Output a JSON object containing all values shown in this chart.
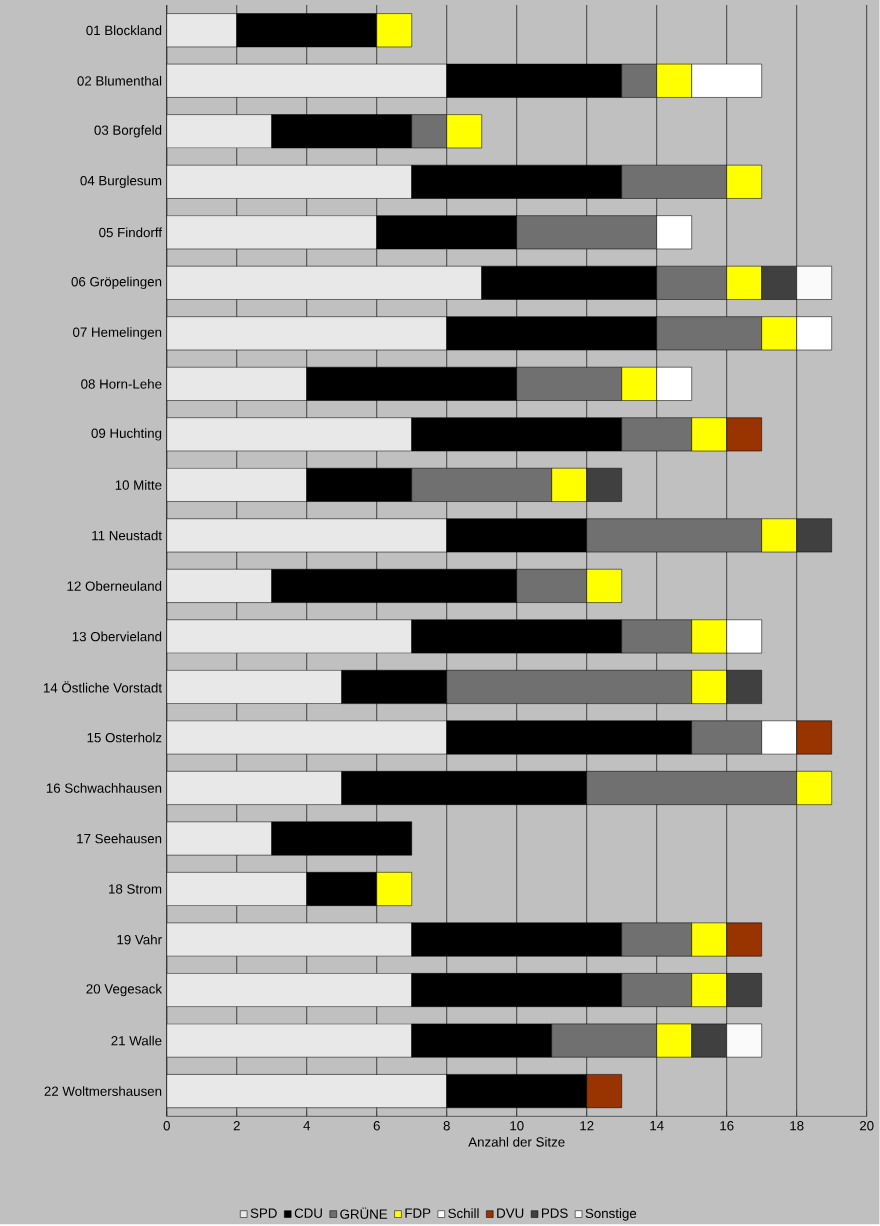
{
  "chart_data": {
    "type": "bar",
    "orientation": "horizontal",
    "stacked": true,
    "xlabel": "Anzahl der Sitze",
    "categories": [
      "01  Blockland",
      "02  Blumenthal",
      "03  Borgfeld",
      "04  Burglesum",
      "05  Findorff",
      "06  Gröpelingen",
      "07  Hemelingen",
      "08  Horn-Lehe",
      "09  Huchting",
      "10  Mitte",
      "11  Neustadt",
      "12  Oberneuland",
      "13  Obervieland",
      "14  Östliche Vorstadt",
      "15  Osterholz",
      "16  Schwachhausen",
      "17  Seehausen",
      "18  Strom",
      "19  Vahr",
      "20  Vegesack",
      "21  Walle",
      "22  Woltmershausen"
    ],
    "series": [
      {
        "name": "SPD",
        "color": "#e8e8e8",
        "values": [
          2,
          8,
          3,
          7,
          6,
          9,
          8,
          4,
          7,
          4,
          8,
          3,
          7,
          5,
          8,
          5,
          3,
          4,
          7,
          7,
          7,
          8
        ]
      },
      {
        "name": "CDU",
        "color": "#000000",
        "values": [
          4,
          5,
          4,
          6,
          4,
          5,
          6,
          6,
          6,
          3,
          4,
          7,
          6,
          3,
          7,
          7,
          4,
          2,
          6,
          6,
          4,
          4
        ]
      },
      {
        "name": "GRÜNE",
        "color": "#707070",
        "values": [
          null,
          1,
          1,
          3,
          4,
          2,
          3,
          3,
          2,
          4,
          5,
          2,
          2,
          7,
          2,
          6,
          null,
          null,
          2,
          2,
          3,
          null
        ]
      },
      {
        "name": "FDP",
        "color": "#ffff00",
        "values": [
          1,
          1,
          1,
          1,
          null,
          1,
          1,
          1,
          1,
          1,
          1,
          1,
          1,
          1,
          null,
          1,
          null,
          1,
          1,
          1,
          1,
          null
        ]
      },
      {
        "name": "Schill",
        "color": "#ffffff",
        "values": [
          null,
          2,
          null,
          null,
          1,
          null,
          1,
          1,
          null,
          null,
          null,
          null,
          1,
          null,
          1,
          null,
          null,
          null,
          null,
          null,
          null,
          null
        ]
      },
      {
        "name": "DVU",
        "color": "#993300",
        "values": [
          null,
          null,
          null,
          null,
          null,
          null,
          null,
          null,
          1,
          null,
          null,
          null,
          null,
          null,
          1,
          null,
          null,
          null,
          1,
          null,
          null,
          1
        ]
      },
      {
        "name": "PDS",
        "color": "#404040",
        "values": [
          null,
          null,
          null,
          null,
          null,
          1,
          null,
          null,
          null,
          1,
          1,
          null,
          null,
          1,
          null,
          null,
          null,
          null,
          null,
          1,
          1,
          null
        ]
      },
      {
        "name": "Sonstige",
        "color": "#fafafa",
        "values": [
          null,
          null,
          null,
          null,
          null,
          1,
          null,
          null,
          null,
          null,
          null,
          null,
          null,
          null,
          null,
          null,
          null,
          null,
          null,
          null,
          1,
          null
        ]
      }
    ],
    "xlim": [
      0,
      20
    ],
    "xticks": [
      0,
      2,
      4,
      6,
      8,
      10,
      12,
      14,
      16,
      18,
      20
    ],
    "grid": "x",
    "legend": "bottom"
  }
}
